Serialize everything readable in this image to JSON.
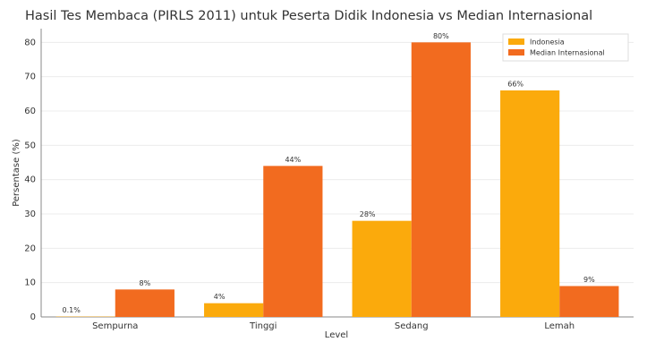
{
  "chart_data": {
    "type": "bar",
    "title": "Hasil Tes Membaca (PIRLS 2011) untuk Peserta Didik Indonesia vs Median Internasional",
    "x_label": "Level",
    "y_label": "Persentase (%)",
    "categories": [
      "Sempurna",
      "Tinggi",
      "Sedang",
      "Lemah"
    ],
    "series": [
      {
        "name": "Indonesia",
        "color": "#fbaa0c",
        "values": [
          0.1,
          4,
          28,
          66
        ],
        "value_labels": [
          "0.1%",
          "4%",
          "28%",
          "66%"
        ]
      },
      {
        "name": "Median Internasional",
        "color": "#f26b1f",
        "values": [
          8,
          44,
          80,
          9
        ],
        "value_labels": [
          "8%",
          "44%",
          "80%",
          "9%"
        ]
      }
    ],
    "ylim": [
      0,
      84
    ],
    "yticks": [
      0,
      10,
      20,
      30,
      40,
      50,
      60,
      70,
      80
    ],
    "grid": true,
    "legend": "upper right"
  }
}
